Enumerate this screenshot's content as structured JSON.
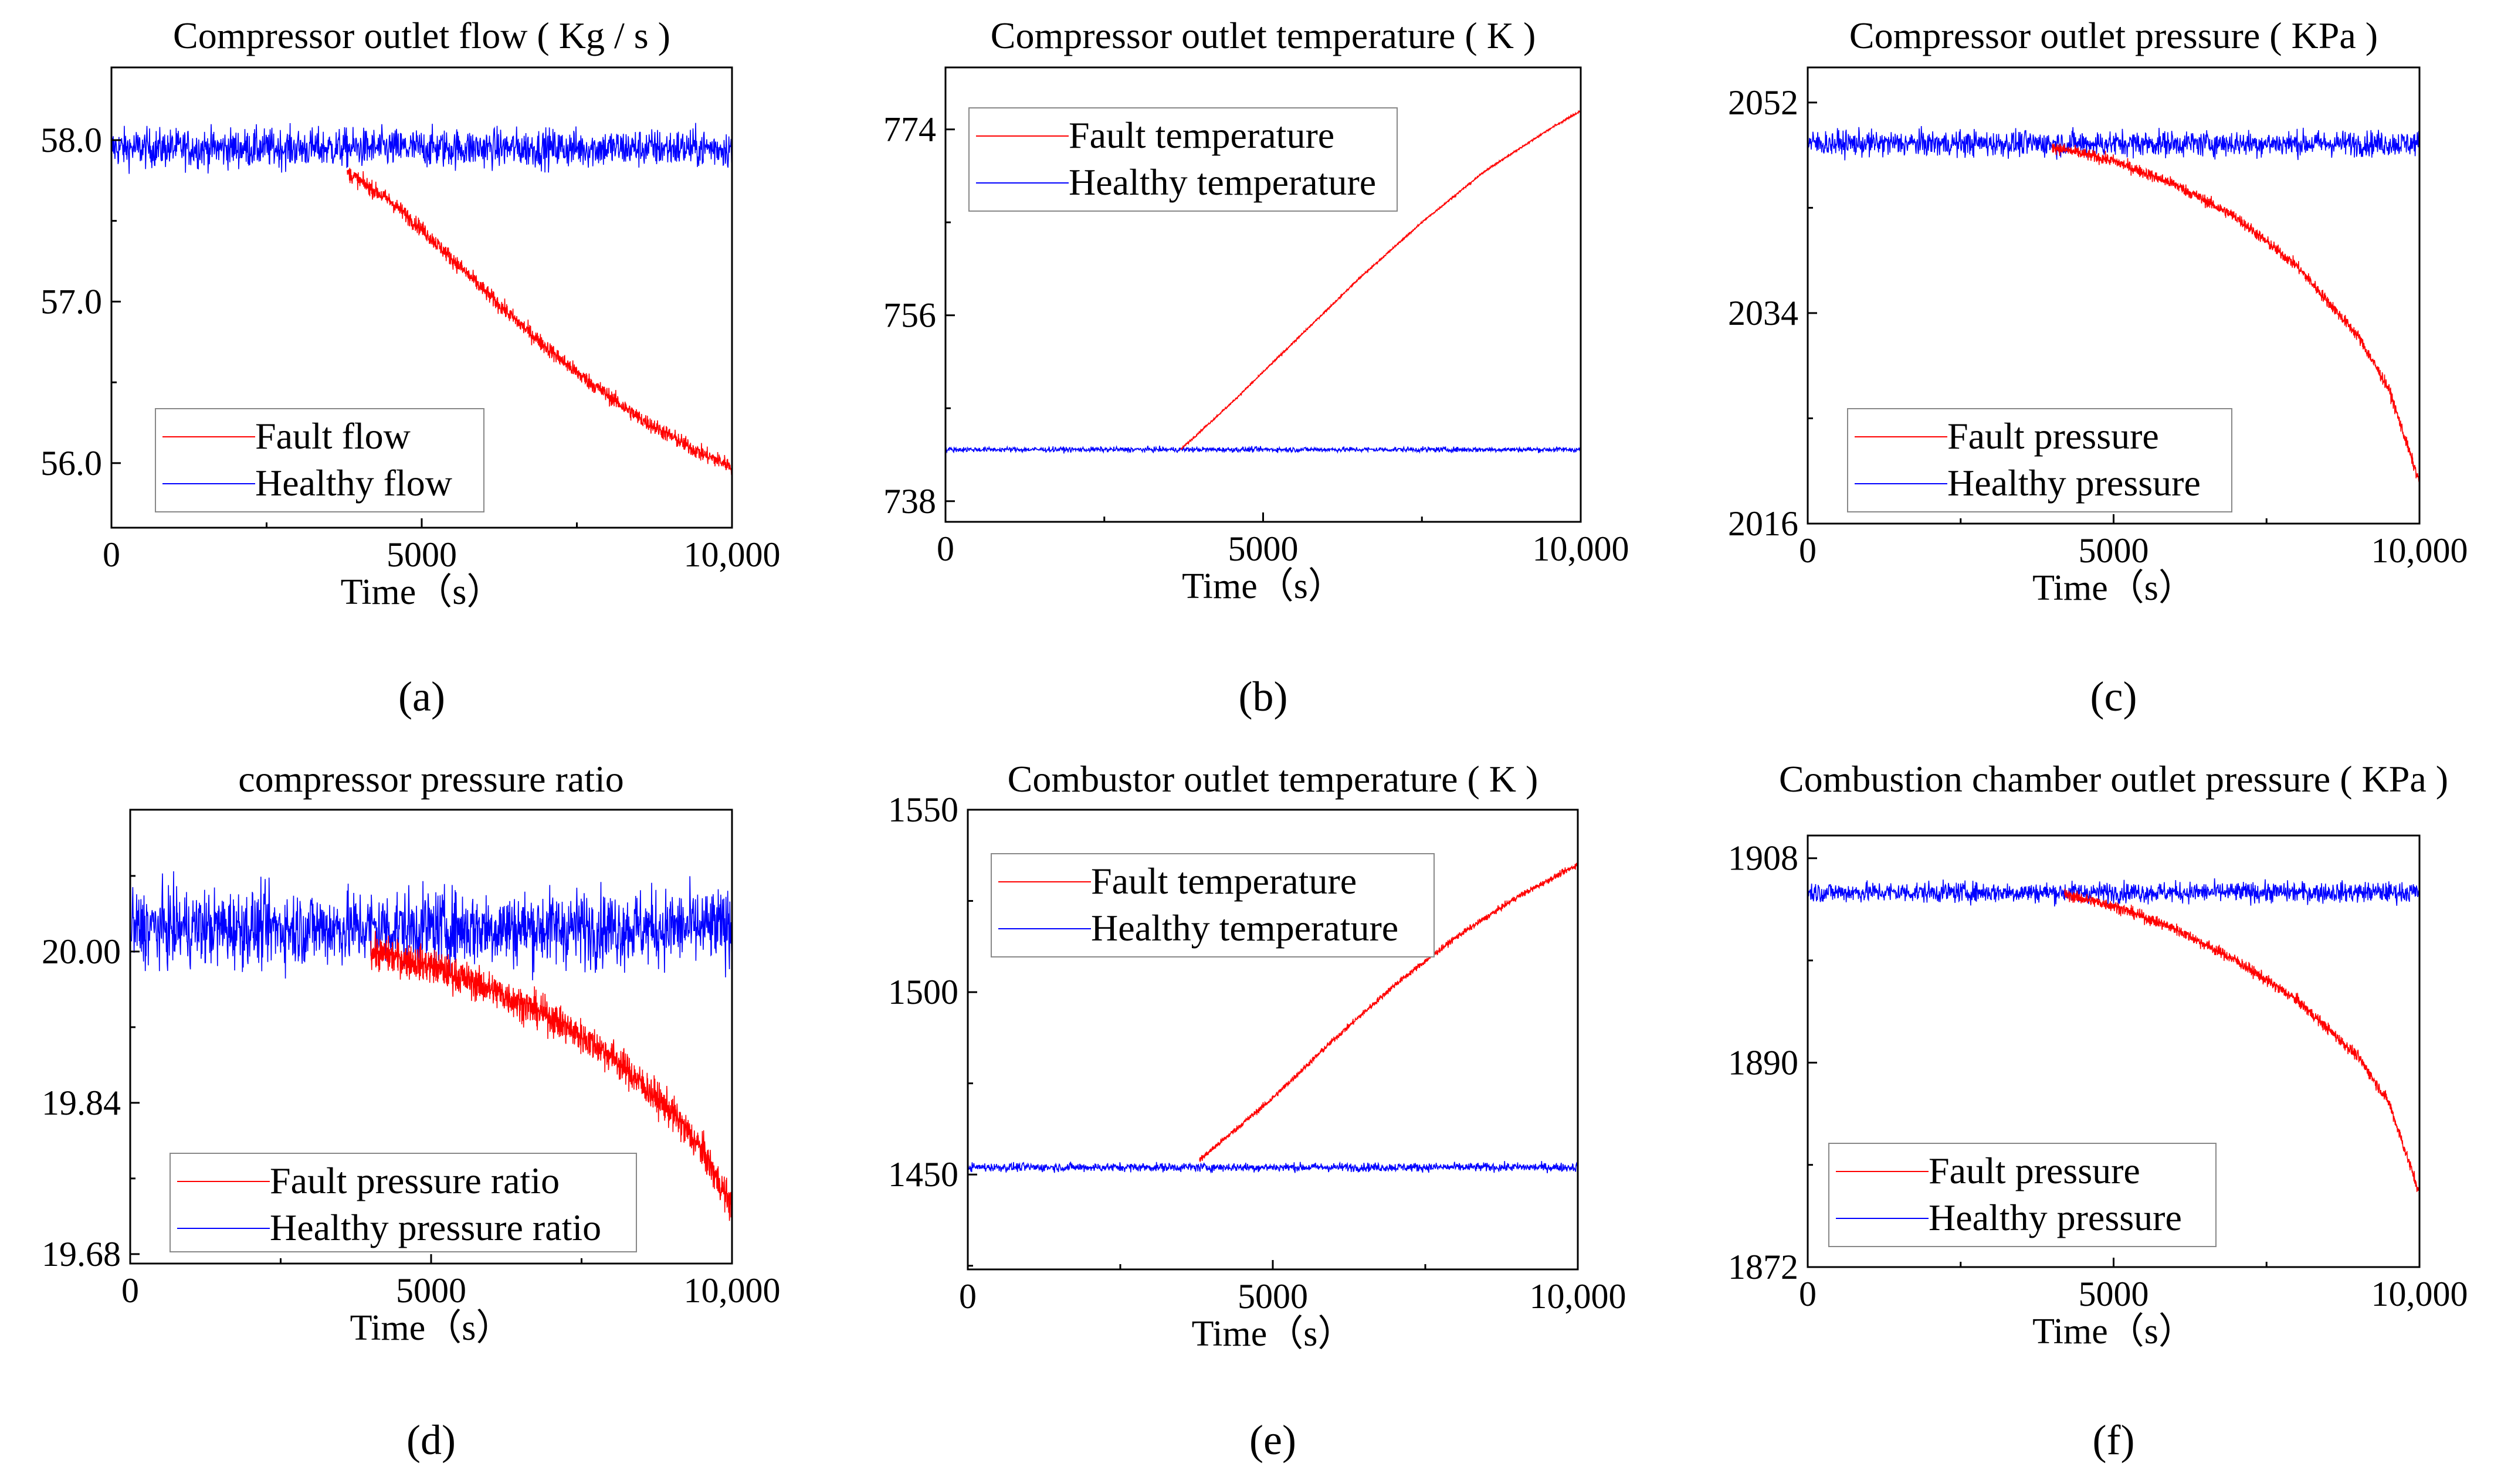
{
  "colors": {
    "fault": "#ff0000",
    "healthy": "#0000ff"
  },
  "chart_data": [
    {
      "id": "a",
      "type": "line",
      "panel_label": "(a)",
      "title": "Compressor outlet flow ( Kg / s )",
      "xlabel": "Time（s）",
      "ylabel": "",
      "xlim": [
        0,
        10000
      ],
      "ylim": [
        55.6,
        58.45
      ],
      "xticks": [
        0,
        5000,
        10000
      ],
      "xtick_labels": [
        "0",
        "5000",
        "10,000"
      ],
      "yticks": [
        56.0,
        57.0,
        58.0
      ],
      "ytick_labels": [
        "56.0",
        "57.0",
        "58.0"
      ],
      "legend_position": "bottom-left",
      "series": [
        {
          "name": "Fault flow",
          "color": "#ff0000",
          "noise": 0.05,
          "x": [
            3800,
            4500,
            5000,
            5500,
            6000,
            6500,
            7000,
            7500,
            8000,
            8500,
            9000,
            9500,
            10000
          ],
          "y": [
            57.8,
            57.62,
            57.45,
            57.26,
            57.07,
            56.89,
            56.72,
            56.56,
            56.42,
            56.28,
            56.17,
            56.06,
            55.98
          ]
        },
        {
          "name": "Healthy flow",
          "color": "#0000ff",
          "noise": 0.12,
          "x": [
            0,
            10000
          ],
          "y": [
            57.95,
            57.95
          ]
        }
      ]
    },
    {
      "id": "b",
      "type": "line",
      "panel_label": "(b)",
      "title": "Compressor outlet temperature ( K )",
      "xlabel": "Time（s）",
      "ylabel": "",
      "xlim": [
        0,
        10000
      ],
      "ylim": [
        736,
        780
      ],
      "xticks": [
        0,
        5000,
        10000
      ],
      "xtick_labels": [
        "0",
        "5000",
        "10,000"
      ],
      "yticks": [
        738,
        756,
        774
      ],
      "ytick_labels": [
        "738",
        "756",
        "774"
      ],
      "legend_position": "top-left",
      "series": [
        {
          "name": "Fault temperature",
          "color": "#ff0000",
          "noise": 0.1,
          "x": [
            3700,
            4500,
            5500,
            6500,
            7500,
            8500,
            9500,
            10000
          ],
          "y": [
            743.0,
            747.5,
            753.5,
            759.5,
            765.0,
            770.0,
            774.0,
            775.8
          ]
        },
        {
          "name": "Healthy temperature",
          "color": "#0000ff",
          "noise": 0.25,
          "x": [
            0,
            10000
          ],
          "y": [
            743,
            743
          ]
        }
      ]
    },
    {
      "id": "c",
      "type": "line",
      "panel_label": "(c)",
      "title": "Compressor outlet pressure ( KPa )",
      "xlabel": "Time（s）",
      "ylabel": "",
      "xlim": [
        0,
        10000
      ],
      "ylim": [
        2016,
        2055
      ],
      "xticks": [
        0,
        5000,
        10000
      ],
      "xtick_labels": [
        "0",
        "5000",
        "10,000"
      ],
      "yticks": [
        2016,
        2034,
        2052
      ],
      "ytick_labels": [
        "2016",
        "2034",
        "2052"
      ],
      "legend_position": "bottom-left",
      "series": [
        {
          "name": "Fault pressure",
          "color": "#ff0000",
          "noise": 0.5,
          "x": [
            4000,
            5000,
            6000,
            7000,
            8000,
            9000,
            9500,
            10000
          ],
          "y": [
            2048.2,
            2047.0,
            2045.0,
            2042.2,
            2038.0,
            2032.0,
            2027.5,
            2019.5
          ]
        },
        {
          "name": "Healthy pressure",
          "color": "#0000ff",
          "noise": 1.1,
          "x": [
            0,
            10000
          ],
          "y": [
            2048.5,
            2048.5
          ]
        }
      ]
    },
    {
      "id": "d",
      "type": "line",
      "panel_label": "(d)",
      "title": "compressor pressure ratio",
      "xlabel": "Time（s）",
      "ylabel": "",
      "xlim": [
        0,
        10000
      ],
      "ylim": [
        19.67,
        20.15
      ],
      "xticks": [
        0,
        5000,
        10000
      ],
      "xtick_labels": [
        "0",
        "5000",
        "10,000"
      ],
      "yticks": [
        19.68,
        19.84,
        20.0
      ],
      "ytick_labels": [
        "19.68",
        "19.84",
        "20.00"
      ],
      "legend_position": "bottom-left",
      "series": [
        {
          "name": "Fault pressure ratio",
          "color": "#ff0000",
          "noise": 0.018,
          "x": [
            4000,
            5000,
            6000,
            7000,
            8000,
            9000,
            9500,
            10000
          ],
          "y": [
            20.0,
            19.985,
            19.96,
            19.93,
            19.89,
            19.83,
            19.79,
            19.73
          ]
        },
        {
          "name": "Healthy pressure ratio",
          "color": "#0000ff",
          "noise": 0.04,
          "x": [
            0,
            10000
          ],
          "y": [
            20.025,
            20.025
          ]
        }
      ]
    },
    {
      "id": "e",
      "type": "line",
      "panel_label": "(e)",
      "title": "Combustor outlet temperature ( K )",
      "xlabel": "Time（s）",
      "ylabel": "",
      "xlim": [
        0,
        10000
      ],
      "ylim": [
        1424,
        1550
      ],
      "xticks": [
        0,
        5000,
        10000
      ],
      "xtick_labels": [
        "0",
        "5000",
        "10,000"
      ],
      "yticks": [
        1450,
        1500,
        1550
      ],
      "ytick_labels": [
        "1450",
        "1500",
        "1550"
      ],
      "legend_position": "top-left",
      "series": [
        {
          "name": "Fault temperature",
          "color": "#ff0000",
          "noise": 0.8,
          "x": [
            3800,
            5000,
            6000,
            7000,
            8000,
            9000,
            10000
          ],
          "y": [
            1454,
            1471,
            1487,
            1502,
            1515,
            1526,
            1535
          ]
        },
        {
          "name": "Healthy temperature",
          "color": "#0000ff",
          "noise": 1.2,
          "x": [
            0,
            10000
          ],
          "y": [
            1452,
            1452
          ]
        }
      ]
    },
    {
      "id": "f",
      "type": "line",
      "panel_label": "(f)",
      "title": "Combustion chamber outlet pressure ( KPa )",
      "xlabel": "Time（s）",
      "ylabel": "",
      "xlim": [
        0,
        10000
      ],
      "ylim": [
        1872,
        1910
      ],
      "xticks": [
        0,
        5000,
        10000
      ],
      "xtick_labels": [
        "0",
        "5000",
        "10,000"
      ],
      "yticks": [
        1872,
        1890,
        1908
      ],
      "ytick_labels": [
        "1872",
        "1890",
        "1908"
      ],
      "legend_position": "bottom-left",
      "series": [
        {
          "name": "Fault pressure",
          "color": "#ff0000",
          "noise": 0.5,
          "x": [
            4200,
            5000,
            6000,
            7000,
            8000,
            9000,
            9500,
            10000
          ],
          "y": [
            1904.8,
            1903.8,
            1901.8,
            1899.0,
            1895.5,
            1890.5,
            1886.5,
            1878.5
          ]
        },
        {
          "name": "Healthy pressure",
          "color": "#0000ff",
          "noise": 0.9,
          "x": [
            0,
            10000
          ],
          "y": [
            1905.0,
            1905.0
          ]
        }
      ]
    }
  ]
}
